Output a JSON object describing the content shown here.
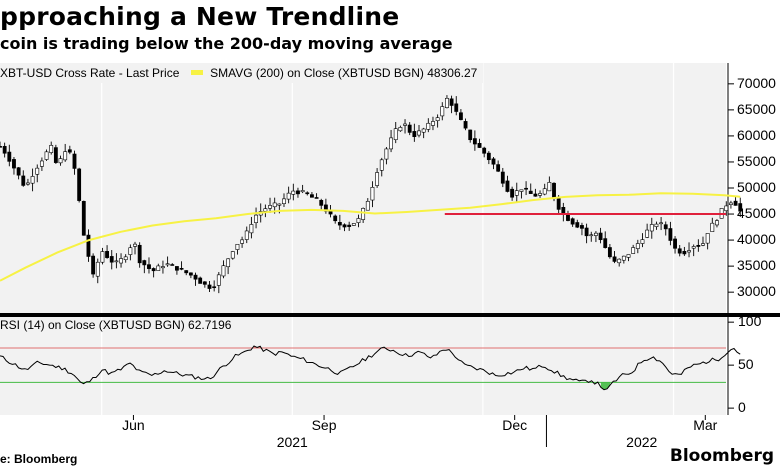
{
  "chart_data": {
    "type": "candlestick",
    "title": "pproaching a New Trendline",
    "subtitle": "coin is trading below the 200-day moving average",
    "legend": {
      "price_label": "XBT-USD Cross Rate - Last Price",
      "sma_label": "SMAVG (200)  on Close (XBTUSD BGN) 48306.27"
    },
    "price_axis": {
      "ylim": [
        26000,
        74000
      ],
      "ticks": [
        30000,
        35000,
        40000,
        45000,
        50000,
        55000,
        60000,
        65000,
        70000
      ],
      "tick_labels": [
        "30000",
        "35000",
        "40000",
        "45000",
        "50000",
        "55000",
        "60000",
        "65000",
        "70000"
      ]
    },
    "x_axis": {
      "months": [
        "Jun",
        "Sep",
        "Dec",
        "Mar"
      ],
      "years": [
        "2021",
        "2022"
      ],
      "start_month_index": 3.9,
      "end_month_index": 15.2
    },
    "resistance": {
      "value": 45000,
      "from_month_index": 10.9,
      "color": "#e0203c"
    },
    "colors": {
      "price": "#000000",
      "sma": "#f7f244",
      "rsi_upper": "#e07070",
      "rsi_lower": "#44bb44",
      "rsi_line": "#000000"
    },
    "price_keypoints": [
      [
        3.9,
        58000
      ],
      [
        4.0,
        56500
      ],
      [
        4.3,
        50000
      ],
      [
        4.45,
        53500
      ],
      [
        4.7,
        58000
      ],
      [
        4.8,
        54000
      ],
      [
        4.95,
        58000
      ],
      [
        5.05,
        55000
      ],
      [
        5.1,
        52000
      ],
      [
        5.2,
        42000
      ],
      [
        5.3,
        36500
      ],
      [
        5.35,
        32500
      ],
      [
        5.5,
        38000
      ],
      [
        5.65,
        36000
      ],
      [
        5.75,
        35500
      ],
      [
        5.9,
        37500
      ],
      [
        6.0,
        40000
      ],
      [
        6.1,
        36000
      ],
      [
        6.3,
        34000
      ],
      [
        6.5,
        35500
      ],
      [
        6.7,
        34500
      ],
      [
        6.95,
        33000
      ],
      [
        7.1,
        31500
      ],
      [
        7.25,
        30800
      ],
      [
        7.4,
        34500
      ],
      [
        7.6,
        39000
      ],
      [
        7.75,
        40500
      ],
      [
        7.9,
        44500
      ],
      [
        8.05,
        46000
      ],
      [
        8.3,
        47000
      ],
      [
        8.5,
        49500
      ],
      [
        8.7,
        49000
      ],
      [
        8.9,
        47500
      ],
      [
        9.05,
        45500
      ],
      [
        9.2,
        43000
      ],
      [
        9.4,
        42800
      ],
      [
        9.55,
        44000
      ],
      [
        9.7,
        48000
      ],
      [
        9.85,
        54000
      ],
      [
        10.0,
        58000
      ],
      [
        10.15,
        61500
      ],
      [
        10.25,
        62500
      ],
      [
        10.4,
        60000
      ],
      [
        10.6,
        61500
      ],
      [
        10.8,
        64000
      ],
      [
        10.95,
        67500
      ],
      [
        11.1,
        64000
      ],
      [
        11.3,
        59500
      ],
      [
        11.5,
        57000
      ],
      [
        11.7,
        54000
      ],
      [
        11.85,
        50500
      ],
      [
        11.95,
        48500
      ],
      [
        12.1,
        50000
      ],
      [
        12.3,
        48500
      ],
      [
        12.45,
        49000
      ],
      [
        12.55,
        51000
      ],
      [
        12.65,
        47000
      ],
      [
        12.8,
        44500
      ],
      [
        12.95,
        43000
      ],
      [
        13.05,
        42500
      ],
      [
        13.15,
        40500
      ],
      [
        13.3,
        41500
      ],
      [
        13.45,
        38000
      ],
      [
        13.55,
        35500
      ],
      [
        13.7,
        36500
      ],
      [
        13.8,
        37500
      ],
      [
        13.95,
        39500
      ],
      [
        14.1,
        42000
      ],
      [
        14.25,
        43500
      ],
      [
        14.4,
        42000
      ],
      [
        14.5,
        38500
      ],
      [
        14.65,
        37500
      ],
      [
        14.8,
        39000
      ],
      [
        14.95,
        39000
      ],
      [
        15.05,
        42000
      ],
      [
        15.15,
        43500
      ],
      [
        15.3,
        46500
      ],
      [
        15.4,
        47500
      ],
      [
        15.48,
        47000
      ],
      [
        15.55,
        45500
      ]
    ],
    "sma_keypoints": [
      [
        3.9,
        32200
      ],
      [
        4.3,
        34700
      ],
      [
        4.8,
        37600
      ],
      [
        5.3,
        40000
      ],
      [
        5.8,
        41600
      ],
      [
        6.3,
        42800
      ],
      [
        6.8,
        43600
      ],
      [
        7.3,
        44200
      ],
      [
        7.8,
        45000
      ],
      [
        8.3,
        45600
      ],
      [
        8.8,
        45800
      ],
      [
        9.3,
        45600
      ],
      [
        9.8,
        45100
      ],
      [
        10.3,
        45400
      ],
      [
        10.8,
        45800
      ],
      [
        11.3,
        46200
      ],
      [
        11.8,
        46900
      ],
      [
        12.3,
        47700
      ],
      [
        12.8,
        48300
      ],
      [
        13.3,
        48600
      ],
      [
        13.8,
        48700
      ],
      [
        14.3,
        49000
      ],
      [
        14.8,
        48900
      ],
      [
        15.3,
        48600
      ],
      [
        15.55,
        48306.27
      ]
    ],
    "rsi": {
      "legend_label": "RSI (14)  on Close (XBTUSD BGN) 62.7196",
      "ylim": [
        -8,
        106
      ],
      "ticks": [
        0,
        50,
        100
      ],
      "tick_labels": [
        "0",
        "50",
        "100"
      ],
      "upper_band": 70,
      "lower_band": 30,
      "keypoints": [
        [
          3.9,
          60
        ],
        [
          4.1,
          52
        ],
        [
          4.3,
          44
        ],
        [
          4.5,
          53
        ],
        [
          4.7,
          50
        ],
        [
          4.9,
          46
        ],
        [
          5.05,
          40
        ],
        [
          5.2,
          27
        ],
        [
          5.35,
          33
        ],
        [
          5.5,
          45
        ],
        [
          5.65,
          40
        ],
        [
          5.8,
          45
        ],
        [
          5.95,
          52
        ],
        [
          6.1,
          42
        ],
        [
          6.3,
          38
        ],
        [
          6.5,
          44
        ],
        [
          6.7,
          40
        ],
        [
          6.9,
          37
        ],
        [
          7.05,
          35
        ],
        [
          7.2,
          34
        ],
        [
          7.4,
          48
        ],
        [
          7.6,
          60
        ],
        [
          7.75,
          65
        ],
        [
          7.9,
          72
        ],
        [
          8.05,
          68
        ],
        [
          8.2,
          63
        ],
        [
          8.35,
          65
        ],
        [
          8.5,
          60
        ],
        [
          8.7,
          56
        ],
        [
          8.9,
          50
        ],
        [
          9.1,
          45
        ],
        [
          9.25,
          40
        ],
        [
          9.4,
          46
        ],
        [
          9.6,
          55
        ],
        [
          9.8,
          64
        ],
        [
          9.95,
          70
        ],
        [
          10.1,
          67
        ],
        [
          10.3,
          61
        ],
        [
          10.5,
          65
        ],
        [
          10.7,
          58
        ],
        [
          10.9,
          70
        ],
        [
          11.05,
          62
        ],
        [
          11.2,
          50
        ],
        [
          11.4,
          46
        ],
        [
          11.55,
          43
        ],
        [
          11.7,
          38
        ],
        [
          11.85,
          40
        ],
        [
          12.0,
          42
        ],
        [
          12.15,
          47
        ],
        [
          12.3,
          45
        ],
        [
          12.45,
          50
        ],
        [
          12.6,
          44
        ],
        [
          12.75,
          37
        ],
        [
          12.9,
          33
        ],
        [
          13.05,
          30
        ],
        [
          13.2,
          33
        ],
        [
          13.35,
          26
        ],
        [
          13.45,
          20
        ],
        [
          13.55,
          30
        ],
        [
          13.7,
          38
        ],
        [
          13.85,
          42
        ],
        [
          14.0,
          55
        ],
        [
          14.15,
          60
        ],
        [
          14.3,
          55
        ],
        [
          14.45,
          41
        ],
        [
          14.6,
          38
        ],
        [
          14.75,
          48
        ],
        [
          14.9,
          51
        ],
        [
          15.05,
          55
        ],
        [
          15.2,
          57
        ],
        [
          15.35,
          66
        ],
        [
          15.45,
          70
        ],
        [
          15.55,
          62.72
        ]
      ]
    }
  },
  "footer": {
    "source": "e: Bloomberg",
    "brand": "Bloomberg"
  }
}
